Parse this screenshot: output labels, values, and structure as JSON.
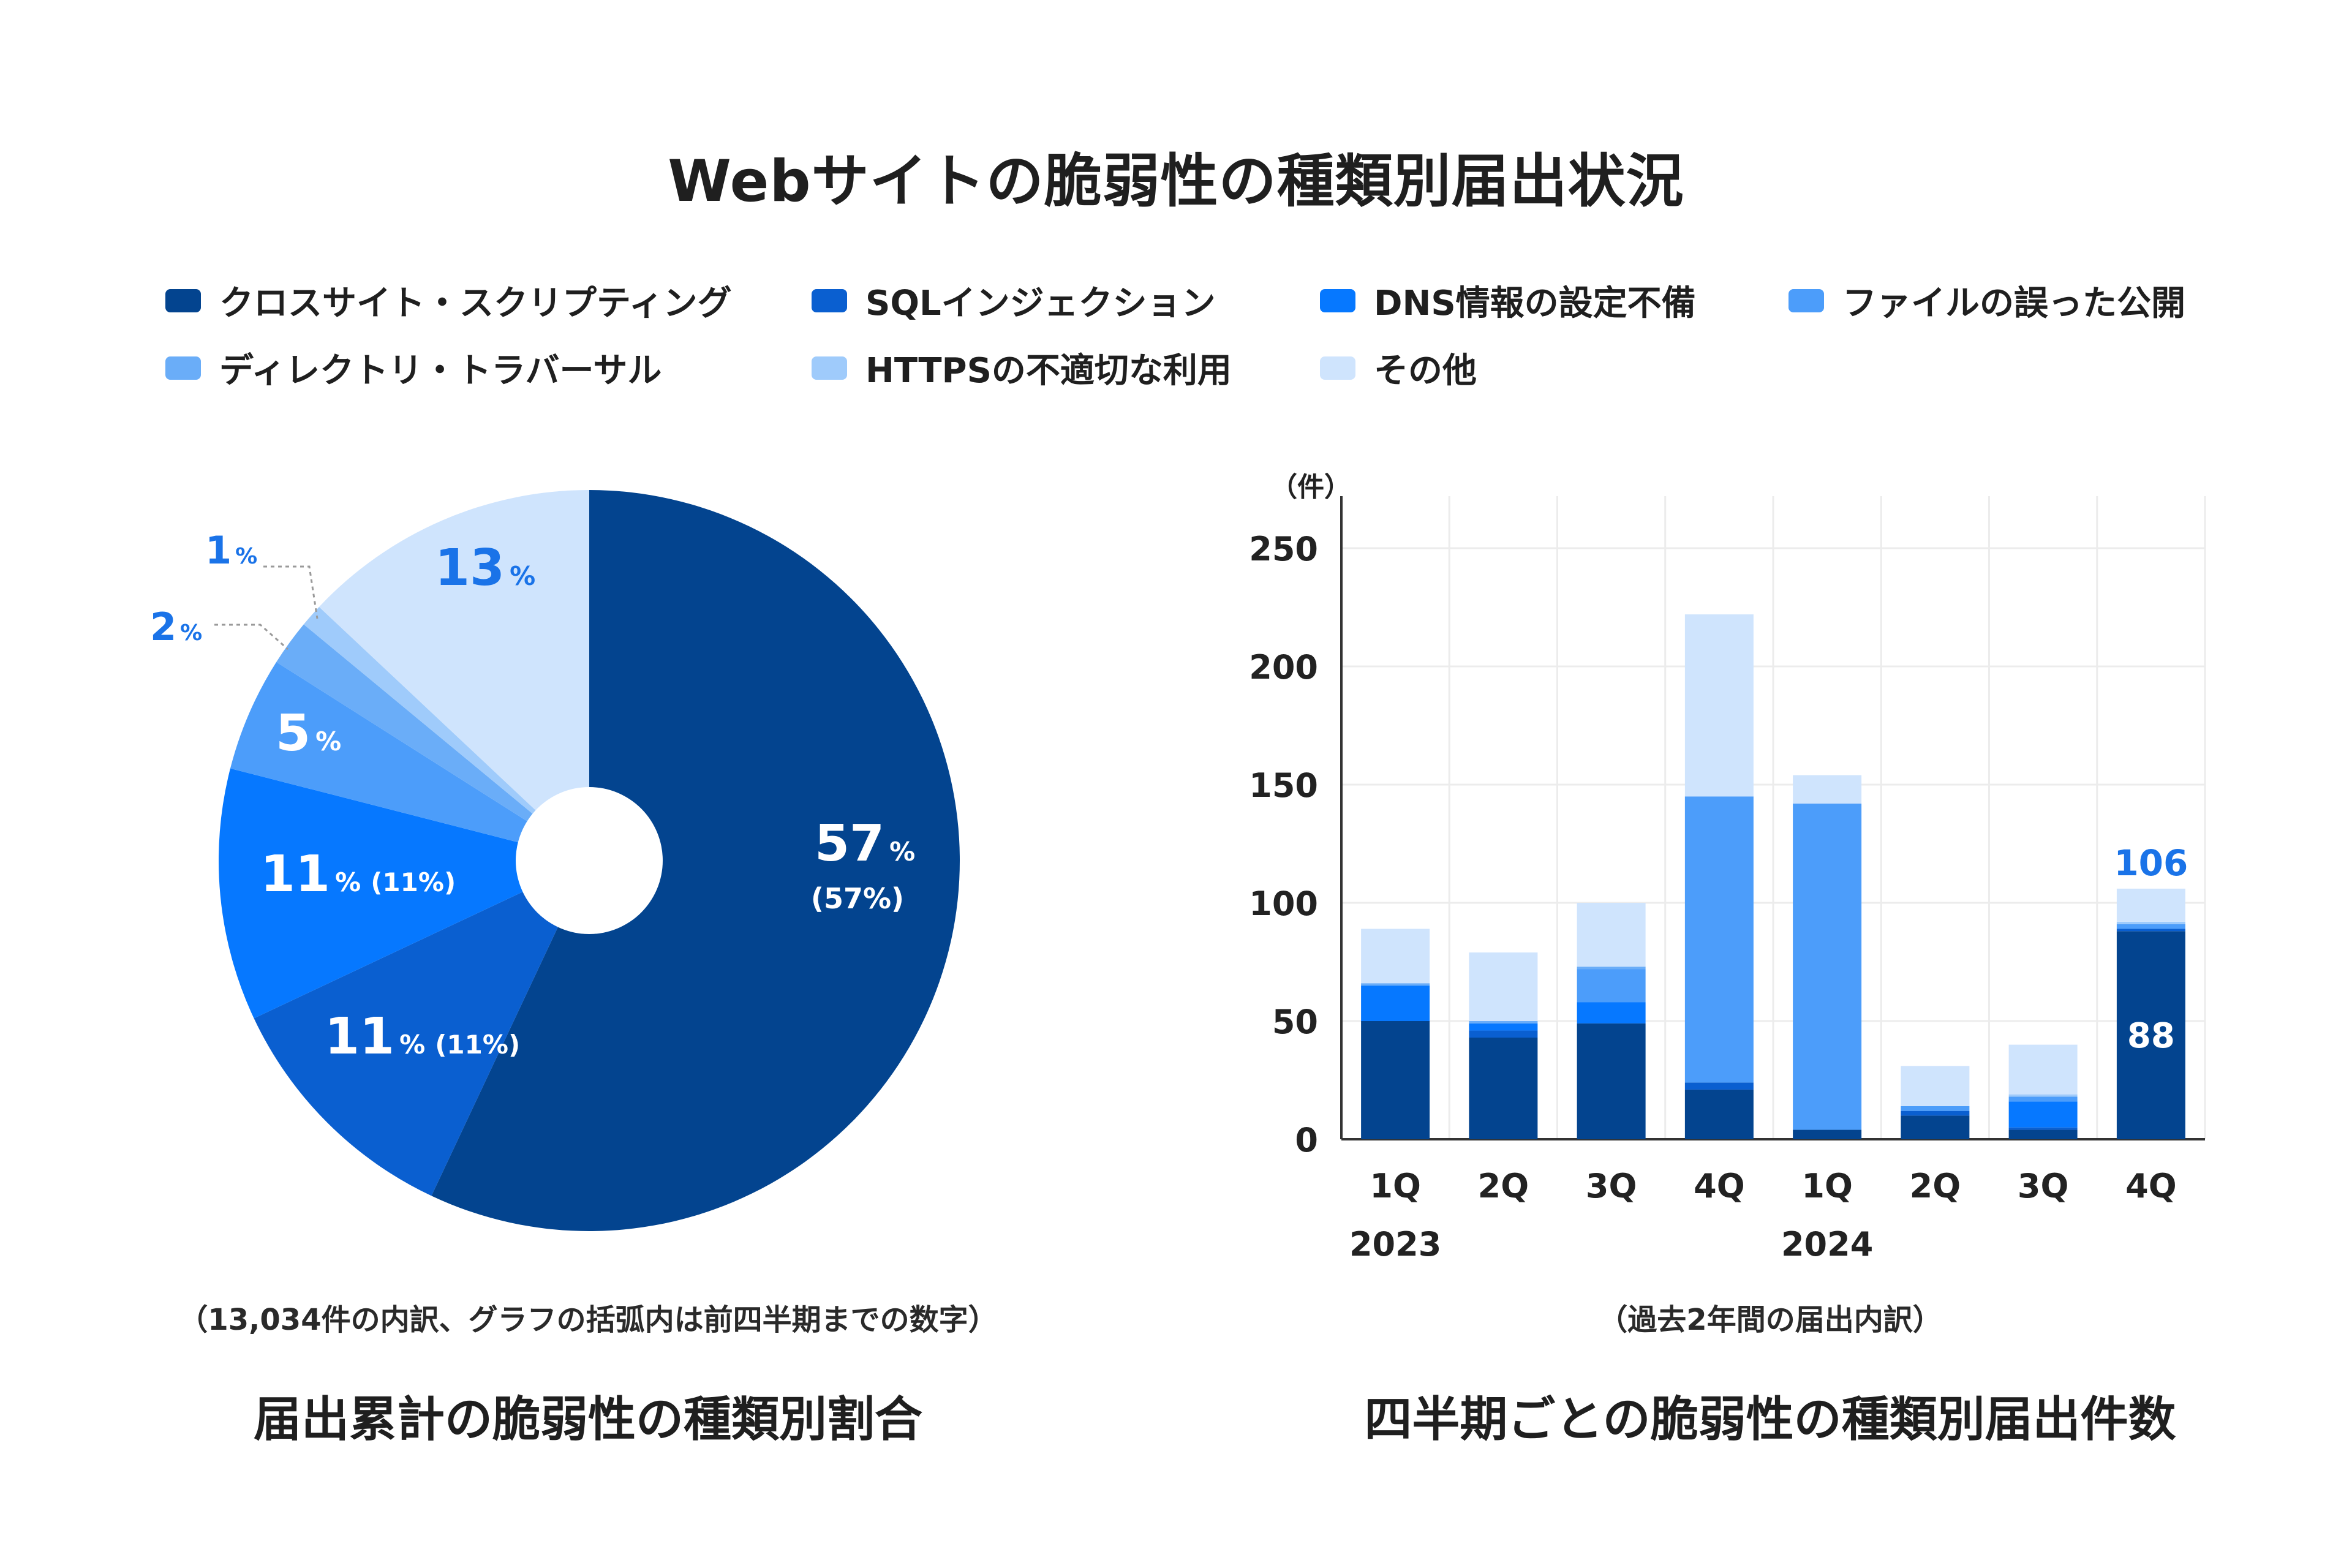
{
  "title": "Webサイトの脆弱性の種類別届出状況",
  "legend": [
    {
      "label": "クロスサイト・スクリプティング",
      "color": "#03448f"
    },
    {
      "label": "SQLインジェクション",
      "color": "#0a5fd0"
    },
    {
      "label": "DNS情報の設定不備",
      "color": "#0678ff"
    },
    {
      "label": "ファイルの誤った公開",
      "color": "#4c9dfa"
    },
    {
      "label": "ディレクトリ・トラバーサル",
      "color": "#6aadf8"
    },
    {
      "label": "HTTPSの不適切な利用",
      "color": "#9fcbfb"
    },
    {
      "label": "その他",
      "color": "#cfe4fd"
    }
  ],
  "pie": {
    "caption": "（13,034件の内訳、グラフの括弧内は前四半期までの数字）",
    "subtitle": "届出累計の脆弱性の種類別割合",
    "labels": [
      {
        "value": "57",
        "unit": "%",
        "prev": "(57%)"
      },
      {
        "value": "11",
        "unit": "%",
        "prev": "(11%)"
      },
      {
        "value": "11",
        "unit": "%",
        "prev": "(11%)"
      },
      {
        "value": "5",
        "unit": "%",
        "prev": ""
      },
      {
        "value": "2",
        "unit": "%",
        "prev": ""
      },
      {
        "value": "1",
        "unit": "%",
        "prev": ""
      },
      {
        "value": "13",
        "unit": "%",
        "prev": ""
      }
    ]
  },
  "bar": {
    "caption": "（過去2年間の届出内訳）",
    "subtitle": "四半期ごとの脆弱性の種類別届出件数",
    "unit_label": "（件）",
    "year_labels": [
      "2023",
      "2024"
    ],
    "total_label": "106",
    "inner_label": "88"
  },
  "chart_data": [
    {
      "type": "pie",
      "categories": [
        "クロスサイト・スクリプティング",
        "SQLインジェクション",
        "DNS情報の設定不備",
        "ファイルの誤った公開",
        "ディレクトリ・トラバーサル",
        "HTTPSの不適切な利用",
        "その他"
      ],
      "values": [
        57,
        11,
        11,
        5,
        2,
        1,
        13
      ],
      "previous_values": [
        57,
        11,
        11,
        null,
        null,
        null,
        null
      ],
      "colors": [
        "#03448f",
        "#0a5fd0",
        "#0678ff",
        "#4c9dfa",
        "#6aadf8",
        "#9fcbfb",
        "#cfe4fd"
      ],
      "donut_hole": true
    },
    {
      "type": "bar",
      "stacked": true,
      "categories": [
        "1Q",
        "2Q",
        "3Q",
        "4Q",
        "1Q",
        "2Q",
        "3Q",
        "4Q"
      ],
      "years": [
        "2023",
        "2023",
        "2023",
        "2023",
        "2024",
        "2024",
        "2024",
        "2024"
      ],
      "ylim": [
        0,
        250
      ],
      "yticks": [
        0,
        50,
        100,
        150,
        200,
        250
      ],
      "ylabel": "（件）",
      "grid": true,
      "series": [
        {
          "name": "クロスサイト・スクリプティング",
          "color": "#03448f",
          "values": [
            50,
            43,
            49,
            21,
            4,
            10,
            4,
            88
          ]
        },
        {
          "name": "SQLインジェクション",
          "color": "#0a5fd0",
          "values": [
            0,
            3,
            0,
            3,
            0,
            2,
            1,
            1
          ]
        },
        {
          "name": "DNS情報の設定不備",
          "color": "#0678ff",
          "values": [
            15,
            3,
            9,
            0,
            0,
            0,
            11,
            0
          ]
        },
        {
          "name": "ファイルの誤った公開",
          "color": "#4c9dfa",
          "values": [
            0,
            0,
            14,
            121,
            138,
            2,
            2,
            2
          ]
        },
        {
          "name": "ディレクトリ・トラバーサル",
          "color": "#6aadf8",
          "values": [
            1,
            1,
            1,
            0,
            0,
            0,
            0,
            0
          ]
        },
        {
          "name": "HTTPSの不適切な利用",
          "color": "#9fcbfb",
          "values": [
            0,
            0,
            0,
            0,
            0,
            0,
            1,
            1
          ]
        },
        {
          "name": "その他",
          "color": "#cfe4fd",
          "values": [
            23,
            29,
            27,
            77,
            12,
            17,
            21,
            14
          ]
        }
      ],
      "totals": [
        89,
        79,
        100,
        222,
        154,
        31,
        40,
        106
      ]
    }
  ]
}
